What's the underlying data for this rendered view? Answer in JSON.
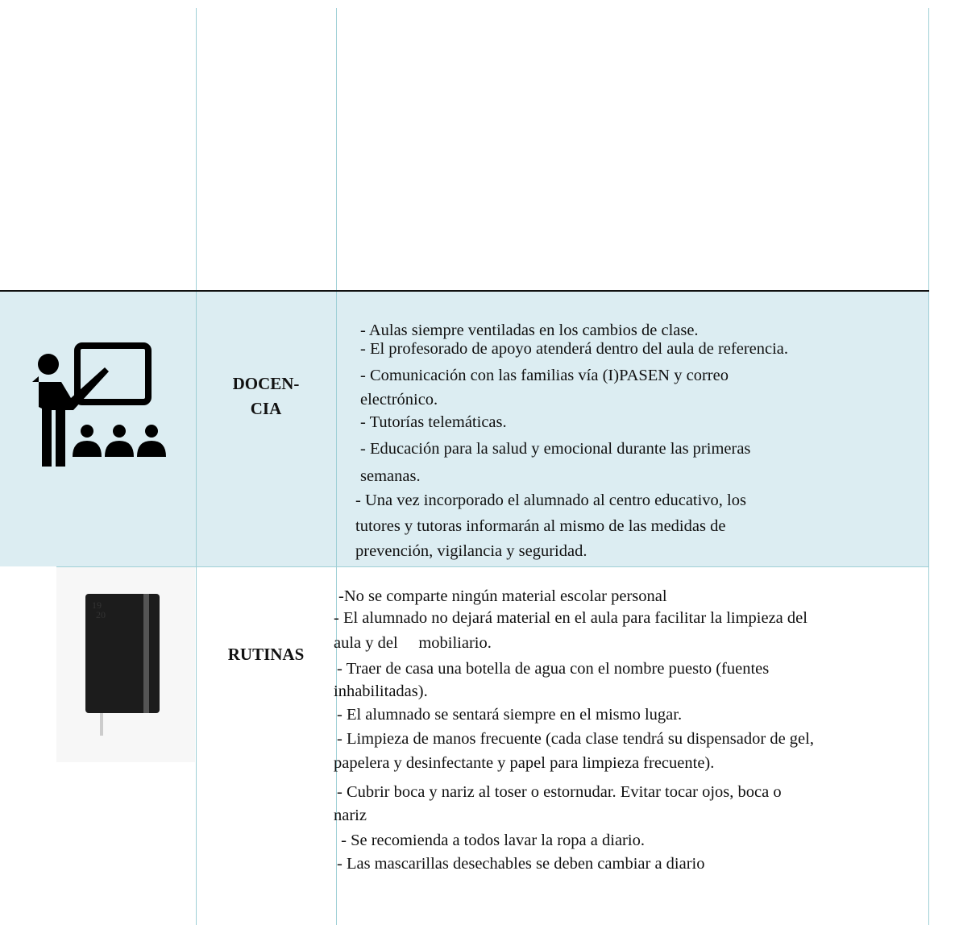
{
  "table": {
    "rows": [
      {
        "label": [],
        "lines": []
      },
      {
        "label": [
          "DOCEN-",
          "CIA"
        ],
        "lines": [
          "- Aulas siempre ventiladas en los cambios de clase.",
          "- El profesorado de apoyo atenderá dentro del aula de referencia.",
          "- Comunicación con las familias vía (I)PASEN y correo",
          "electrónico.",
          "- Tutorías telemáticas.",
          "- Educación para la salud y emocional durante las primeras",
          "semanas.",
          "- Una vez incorporado el alumnado al centro educativo, los",
          "tutores y tutoras informarán al mismo de las medidas de",
          "prevención, vigilancia y seguridad."
        ]
      },
      {
        "label": [
          "RUTINAS"
        ],
        "notebook_text": [
          "19",
          "20"
        ],
        "lines": [
          "-No se comparte ningún material escolar personal",
          "- El alumnado no dejará material en el aula para facilitar la limpieza del",
          "aula y del     mobiliario.",
          "- Traer de casa una botella de agua con el nombre puesto (fuentes",
          "inhabilitadas).",
          "- El alumnado se sentará siempre en el mismo lugar.",
          "- Limpieza de manos frecuente (cada clase tendrá su dispensador de gel,",
          "papelera y desinfectante y papel para limpieza frecuente).",
          "- Cubrir boca y nariz al toser o estornudar. Evitar tocar ojos, boca o",
          "nariz",
          " - Se recomienda a todos lavar la ropa a diario.",
          "- Las mascarillas desechables se deben cambiar a diario"
        ]
      }
    ]
  }
}
